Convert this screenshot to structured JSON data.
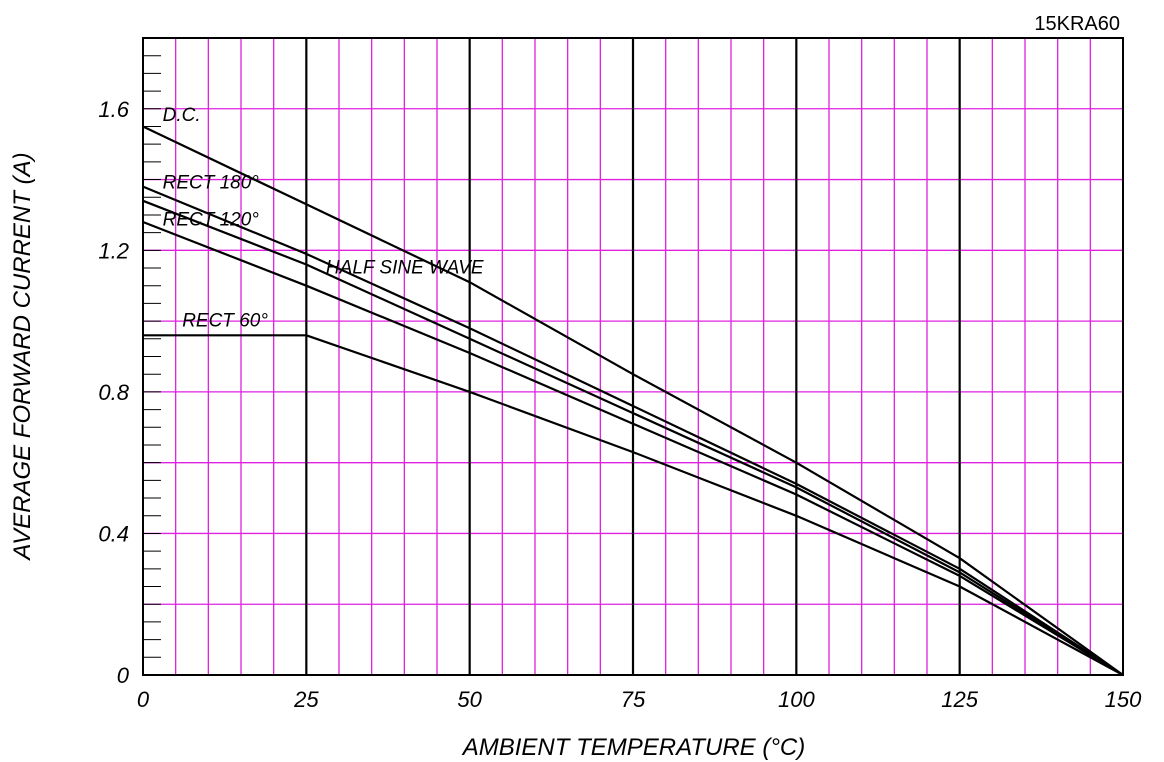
{
  "chart_data": {
    "type": "line",
    "part_number": "15KRA60",
    "title": "",
    "xlabel": "AMBIENT TEMPERATURE (°C)",
    "ylabel": "AVERAGE FORWARD CURRENT (A)",
    "xlim": [
      0,
      150
    ],
    "ylim": [
      0,
      1.8
    ],
    "x_ticks": [
      0,
      25,
      50,
      75,
      100,
      125,
      150
    ],
    "x_tick_labels": [
      "0",
      "25",
      "50",
      "75",
      "100",
      "125",
      "150"
    ],
    "y_ticks": [
      0,
      0.4,
      0.8,
      1.2,
      1.6
    ],
    "y_tick_labels": [
      "0",
      "0.4",
      "0.8",
      "1.2",
      "1.6"
    ],
    "x_minor_step": 5,
    "y_minor_step": 0.2,
    "grid": true,
    "grid_color": "#e020e0",
    "major_grid_color": "#000000",
    "series": [
      {
        "name": "D.C.",
        "x": [
          0,
          25,
          50,
          75,
          100,
          125,
          150
        ],
        "y": [
          1.55,
          1.33,
          1.11,
          0.85,
          0.6,
          0.33,
          0
        ]
      },
      {
        "name": "RECT 180°",
        "x": [
          0,
          25,
          50,
          75,
          100,
          125,
          150
        ],
        "y": [
          1.38,
          1.19,
          0.98,
          0.76,
          0.54,
          0.3,
          0
        ]
      },
      {
        "name": "RECT 120°",
        "x": [
          0,
          25,
          50,
          75,
          100,
          125,
          150
        ],
        "y": [
          1.34,
          1.16,
          0.95,
          0.74,
          0.53,
          0.29,
          0
        ]
      },
      {
        "name": "HALF SINE WAVE",
        "x": [
          0,
          25,
          50,
          75,
          100,
          125,
          150
        ],
        "y": [
          1.28,
          1.1,
          0.91,
          0.71,
          0.51,
          0.28,
          0
        ]
      },
      {
        "name": "RECT 60°",
        "x": [
          0,
          25,
          50,
          75,
          100,
          125,
          150
        ],
        "y": [
          0.96,
          0.96,
          0.8,
          0.63,
          0.45,
          0.25,
          0
        ]
      }
    ],
    "legend": "inline labels on curves"
  }
}
